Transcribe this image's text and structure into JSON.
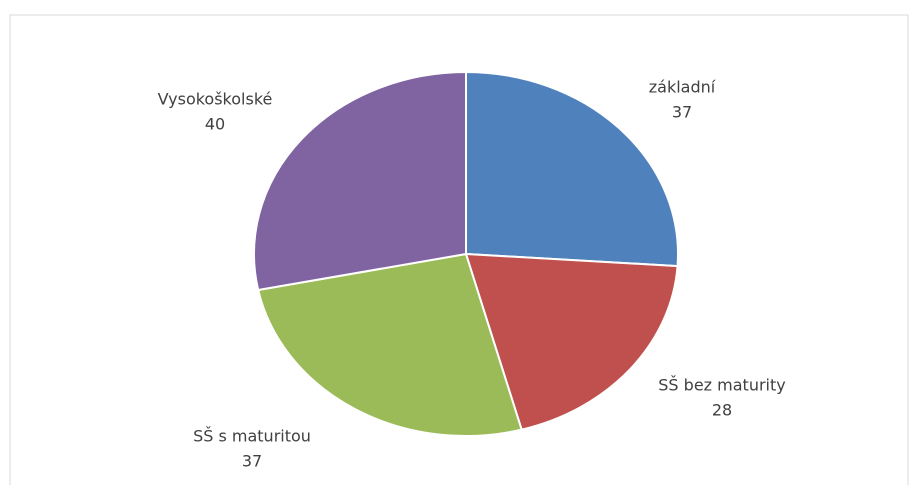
{
  "chart_data": {
    "type": "pie",
    "categories": [
      "základní",
      "SŠ bez maturity",
      "SŠ s maturitou",
      "Vysokoškolské"
    ],
    "values": [
      37,
      28,
      37,
      40
    ],
    "colors": [
      "#4f81bd",
      "#c0504d",
      "#9bbb59",
      "#8064a2"
    ]
  }
}
